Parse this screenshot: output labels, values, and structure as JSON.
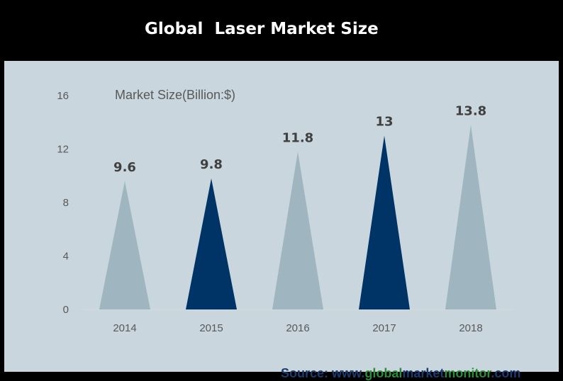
{
  "chart_data": {
    "type": "bar",
    "title": "Global  Laser Market Size",
    "ylabel": "Market Size(Billion:$)",
    "xlabel": "",
    "categories": [
      "2014",
      "2015",
      "2016",
      "2017",
      "2018"
    ],
    "values": [
      9.6,
      9.8,
      11.8,
      13,
      13.8
    ],
    "value_labels": [
      "9.6",
      "9.8",
      "11.8",
      "13",
      "13.8"
    ],
    "ylim": [
      0,
      16
    ],
    "yticks": [
      "0",
      "4",
      "8",
      "12",
      "16"
    ],
    "grid": false,
    "bar_shape": "triangle",
    "colors": [
      "#9fb6c1",
      "#003366",
      "#9fb6c1",
      "#003366",
      "#9fb6c1"
    ]
  },
  "source": {
    "prefix": "Source: www.",
    "global": "global",
    "market": "market",
    "monitor": "monitor",
    "suffix": ".com"
  }
}
